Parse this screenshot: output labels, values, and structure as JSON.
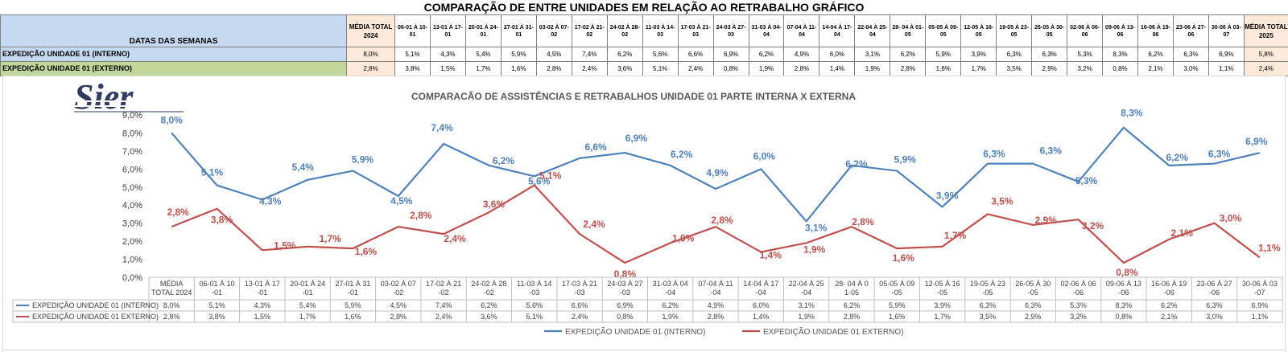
{
  "sheet": {
    "title": "COMPARAÇÃO DE ENTRE UNIDADES EM RELAÇÃO AO RETRABALHO GRÁFICO",
    "header_label": "DATAS DAS SEMANAS",
    "avg2024_label": "MÉDIA TOTAL 2024",
    "avg2025_label": "MÉDIA TOTAL 2025",
    "weeks": [
      "06-01 À 10-01",
      "13-01 À 17-01",
      "20-01 À 24-01",
      "27-01 À 31-01",
      "03-02 À 07-02",
      "17-02 À 21-02",
      "24-02 À 28-02",
      "11-03 À 14-03",
      "17-03 À 21-03",
      "24-03 À 27-03",
      "31-03 À 04-04",
      "07-04 À 11-04",
      "14-04 À 17-04",
      "22-04 À 25-04",
      "28- 04 À 01-05",
      "05-05 À 09-05",
      "12-05 À 16-05",
      "19-05 À 23-05",
      "26-05 À 30-05",
      "02-06 À 06-06",
      "09-06 À 13-06",
      "16-06 À 19-06",
      "23-06 À 27-06",
      "30-06 À 03-07"
    ],
    "rows": [
      {
        "label": "EXPEDIÇÃO UNIDADE 01 (INTERNO)",
        "avg2024": "8,0%",
        "values": [
          "5,1%",
          "4,3%",
          "5,4%",
          "5,9%",
          "4,5%",
          "7,4%",
          "6,2%",
          "5,6%",
          "6,6%",
          "6,9%",
          "6,2%",
          "4,9%",
          "6,0%",
          "3,1%",
          "6,2%",
          "5,9%",
          "3,9%",
          "6,3%",
          "6,3%",
          "5,3%",
          "8,3%",
          "6,2%",
          "6,3%",
          "6,9%"
        ],
        "avg2025": "5,8%"
      },
      {
        "label": "EXPEDIÇÃO UNIDADE 01 (EXTERNO)",
        "avg2024": "2,8%",
        "values": [
          "3,8%",
          "1,5%",
          "1,7%",
          "1,6%",
          "2,8%",
          "2,4%",
          "3,6%",
          "5,1%",
          "2,4%",
          "0,8%",
          "1,9%",
          "2,8%",
          "1,4%",
          "1,9%",
          "2,8%",
          "1,6%",
          "1,7%",
          "3,5%",
          "2,9%",
          "3,2%",
          "0,8%",
          "2,1%",
          "3,0%",
          "1,1%"
        ],
        "avg2025": "2,4%"
      }
    ]
  },
  "logo": {
    "text": "Sier"
  },
  "chart_data": {
    "type": "line",
    "title": "COMPARACÃO DE ASSISTÊNCIAS E RETRABALHOS UNIDADE 01 PARTE INTERNA X EXTERNA",
    "categories": [
      "MÉDIA TOTAL 2024",
      "06-01 À 10-01",
      "13-01 À 17-01",
      "20-01 À 24-01",
      "27-01 À 31-01",
      "03-02 À 07-02",
      "17-02 À 21-02",
      "24-02 À 28-02",
      "11-03 À 14-03",
      "17-03 À 21-03",
      "24-03 À 27-03",
      "31-03 À 04-04",
      "07-04 À 11-04",
      "14-04 À 17-04",
      "22-04 À 25-04",
      "28- 04 À 01-05",
      "05-05 À 09-05",
      "12-05 À 16-05",
      "19-05 À 23-05",
      "26-05 À 30-05",
      "02-06 À 06-06",
      "09-06 À 13-06",
      "16-06 À 19-06",
      "23-06 À 27-06",
      "30-06 À 03-07"
    ],
    "ylim": [
      0,
      9
    ],
    "ytick_step": 1,
    "y_unit": "%",
    "grid": false,
    "legend": "bottom",
    "series": [
      {
        "name": "EXPEDIÇÃO UNIDADE 01 (INTERNO)",
        "color": "#4f81bd",
        "label_color": "#4f81bd",
        "values": [
          8.0,
          5.1,
          4.3,
          5.4,
          5.9,
          4.5,
          7.4,
          6.2,
          5.6,
          6.6,
          6.9,
          6.2,
          4.9,
          6.0,
          3.1,
          6.2,
          5.9,
          3.9,
          6.3,
          6.3,
          5.3,
          8.3,
          6.2,
          6.3,
          6.9
        ]
      },
      {
        "name": "EXPEDIÇÃO UNIDADE 01 EXTERNO)",
        "color": "#c0504d",
        "label_color": "#c0504d",
        "values": [
          2.8,
          3.8,
          1.5,
          1.7,
          1.6,
          2.8,
          2.4,
          3.6,
          5.1,
          2.4,
          0.8,
          1.9,
          2.8,
          1.4,
          1.9,
          2.8,
          1.6,
          1.7,
          3.5,
          2.9,
          3.2,
          0.8,
          2.1,
          3.0,
          1.1
        ]
      }
    ],
    "table_series_names": [
      "EXPEDIÇÃO UNIDADE 01 (INTERNO)",
      "EXPEDIÇÃO UNIDADE 01 EXTERNO)"
    ],
    "legend_names": [
      "EXPEDIÇÃO UNIDADE 01 (INTERNO)",
      "EXPEDIÇÃO UNIDADE 01 EXTERNO)"
    ]
  }
}
